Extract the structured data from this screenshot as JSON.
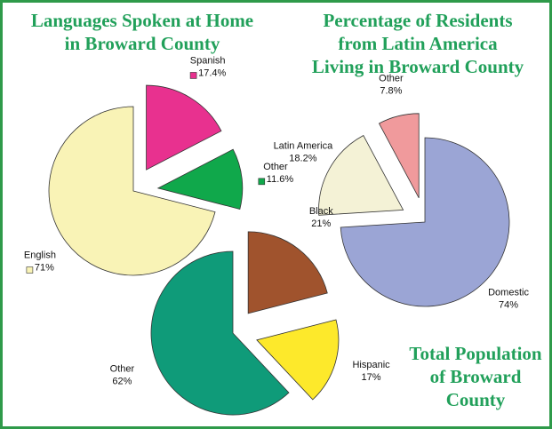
{
  "chart_data": [
    {
      "type": "pie",
      "title": [
        "Languages Spoken at Home",
        "in Broward County"
      ],
      "categories": [
        "Spanish",
        "Other",
        "English"
      ],
      "values": [
        17.4,
        11.6,
        71
      ],
      "value_labels": [
        "17.4%",
        "11.6%",
        "71%"
      ],
      "colors": [
        "#e8318f",
        "#10a84b",
        "#f9f3b6"
      ],
      "explode": [
        true,
        true,
        false
      ],
      "legend_swatch": true
    },
    {
      "type": "pie",
      "title": [
        "Percentage of Residents",
        "from Latin America",
        "Living in Broward County"
      ],
      "categories": [
        "Other",
        "Latin America",
        "Domestic"
      ],
      "values": [
        7.8,
        18.2,
        74
      ],
      "value_labels": [
        "7.8%",
        "18.2%",
        "74%"
      ],
      "colors": [
        "#f09a9c",
        "#f4f2d6",
        "#9ba5d5"
      ],
      "explode": [
        true,
        true,
        false
      ],
      "legend_swatch": false
    },
    {
      "type": "pie",
      "title": [
        "Total Population",
        "of Broward",
        "County"
      ],
      "categories": [
        "Black",
        "Hispanic",
        "Other"
      ],
      "values": [
        21,
        17,
        62
      ],
      "value_labels": [
        "21%",
        "17%",
        "62%"
      ],
      "colors": [
        "#a0532d",
        "#fde92b",
        "#0f9b79"
      ],
      "explode": [
        true,
        true,
        false
      ],
      "legend_swatch": false
    }
  ]
}
